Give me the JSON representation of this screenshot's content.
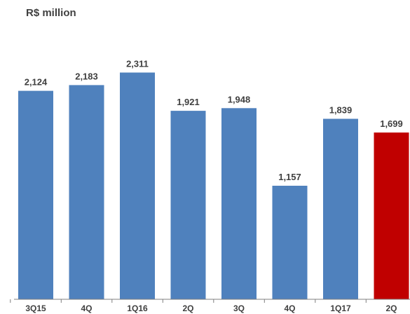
{
  "header": {
    "unit": "R$ million"
  },
  "chart_data": {
    "type": "bar",
    "title": "",
    "unit": "R$ million",
    "categories": [
      "3Q15",
      "4Q",
      "1Q16",
      "2Q",
      "3Q",
      "4Q",
      "1Q17",
      "2Q"
    ],
    "values": [
      2124,
      2183,
      2311,
      1921,
      1948,
      1157,
      1839,
      1699
    ],
    "value_labels": [
      "2,124",
      "2,183",
      "2,311",
      "1,921",
      "1,948",
      "1,157",
      "1,839",
      "1,699"
    ],
    "ylim": [
      0,
      3050
    ],
    "grid": false,
    "legend": "none",
    "colors": {
      "default": "#4f81bd",
      "highlight": "#c00000"
    },
    "highlight_index": 7
  }
}
